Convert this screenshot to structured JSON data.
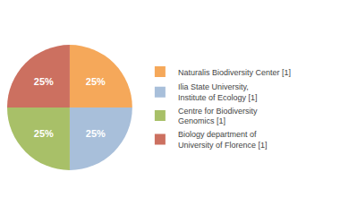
{
  "chart_data": {
    "type": "pie",
    "categories": [
      "Naturalis Biodiversity Center [1]",
      "Ilia State University,\nInstitute of Ecology [1]",
      "Centre for Biodiversity\nGenomics [1]",
      "Biology department of\nUniversity of Florence [1]"
    ],
    "values": [
      25,
      25,
      25,
      25
    ],
    "value_labels": [
      "25%",
      "25%",
      "25%",
      "25%"
    ],
    "data_labels": true,
    "colors": [
      "#F5A85A",
      "#A8BFDA",
      "#A8C068",
      "#CC7060"
    ],
    "legend": "right"
  }
}
